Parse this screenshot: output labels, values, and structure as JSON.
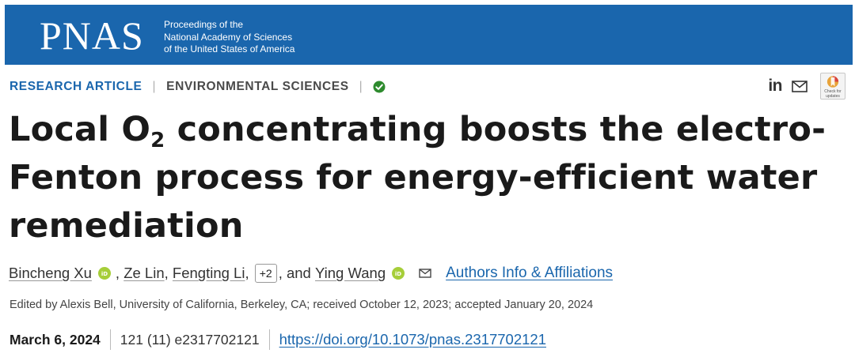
{
  "header": {
    "logo_text": "PNAS",
    "tagline": [
      "Proceedings of the",
      "National Academy of Sciences",
      "of the United States of America"
    ],
    "background_color": "#1a66ad"
  },
  "meta": {
    "article_type": "RESEARCH ARTICLE",
    "subject": "ENVIRONMENTAL SCIENCES",
    "open_access_icon": "check-circle-icon"
  },
  "share": {
    "linkedin_label": "in",
    "mail_icon": "mail-icon",
    "crossmark_label": "Check for updates"
  },
  "title": {
    "part1": "Local O",
    "subscript": "2",
    "part2": " concentrating boosts the electro-Fenton process for energy-efficient water remediation"
  },
  "authors": {
    "list": [
      "Bincheng Xu",
      "Ze Lin",
      "Fengting Li",
      "Ying Wang"
    ],
    "sep1": ",",
    "sep2": ",",
    "sep3": ",",
    "more_label": "+2",
    "and_text": ", and",
    "affiliations_link": "Authors Info & Affiliations"
  },
  "edited_by": "Edited by Alexis Bell, University of California, Berkeley, CA; received October 12, 2023; accepted January 20, 2024",
  "publication": {
    "date": "March 6, 2024",
    "citation": "121 (11) e2317702121",
    "doi": "https://doi.org/10.1073/pnas.2317702121"
  },
  "colors": {
    "accent": "#1a66ad",
    "orcid": "#a6ce39",
    "check": "#2e8b2e"
  }
}
